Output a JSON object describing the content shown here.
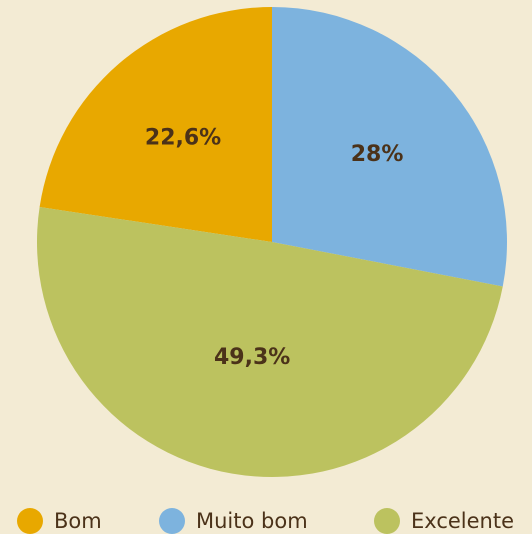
{
  "chart_data": {
    "type": "pie",
    "categories": [
      "Bom",
      "Muito bom",
      "Excelente"
    ],
    "values": [
      22.6,
      28,
      49.3
    ],
    "value_labels": [
      "22,6%",
      "28%",
      "49,3%"
    ],
    "colors": [
      "#e8a800",
      "#7db3de",
      "#bcc25f"
    ]
  }
}
